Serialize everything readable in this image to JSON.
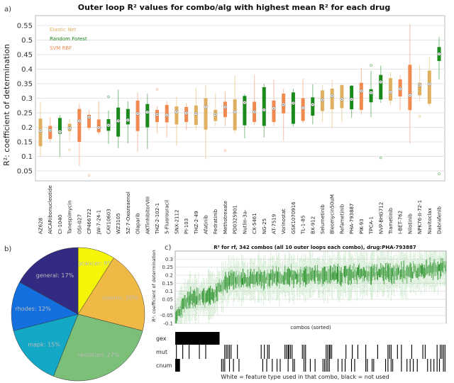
{
  "panel_labels": {
    "a": "a)",
    "b": "b)",
    "c": "c)"
  },
  "chart_data": [
    {
      "type": "box",
      "title": "Outer loop R² values for combo/alg with highest mean R² for each drug",
      "ylabel": "R²: coefficient of determination",
      "ylim": [
        0.03,
        0.57
      ],
      "yticks": [
        0.05,
        0.1,
        0.15,
        0.2,
        0.25,
        0.3,
        0.35,
        0.4,
        0.45,
        0.5,
        0.55
      ],
      "grid": true,
      "legend_placement": "top-left",
      "legend": [
        {
          "key": "EN",
          "label": "Elastic Net",
          "color": "#e0b060"
        },
        {
          "key": "RF",
          "label": "Random Forest",
          "color": "#1a8a1a"
        },
        {
          "key": "SVM",
          "label": "SVM RBF",
          "color": "#f08a50"
        }
      ],
      "boxes": [
        {
          "drug": "AZ628",
          "alg": "EN",
          "median": 0.188,
          "q1": 0.135,
          "q3": 0.23,
          "lo": 0.1,
          "hi": 0.288,
          "outliers": []
        },
        {
          "drug": "AICARibonucleotide",
          "alg": "SVM",
          "median": 0.19,
          "q1": 0.16,
          "q3": 0.205,
          "lo": 0.148,
          "hi": 0.235,
          "outliers": []
        },
        {
          "drug": "CI-1040",
          "alg": "RF",
          "median": 0.185,
          "q1": 0.178,
          "q3": 0.232,
          "lo": 0.098,
          "hi": 0.242,
          "outliers": []
        },
        {
          "drug": "Tanespimycin",
          "alg": "EN",
          "median": 0.197,
          "q1": 0.187,
          "q3": 0.212,
          "lo": 0.153,
          "hi": 0.228,
          "outliers": [
            0.123
          ]
        },
        {
          "drug": "OSI-027",
          "alg": "SVM",
          "median": 0.222,
          "q1": 0.15,
          "q3": 0.263,
          "lo": 0.067,
          "hi": 0.28,
          "outliers": []
        },
        {
          "drug": "CP466722",
          "alg": "SVM",
          "median": 0.235,
          "q1": 0.198,
          "q3": 0.243,
          "lo": 0.19,
          "hi": 0.26,
          "outliers": [
            0.035
          ]
        },
        {
          "drug": "JW-7-24-1",
          "alg": "SVM",
          "median": 0.199,
          "q1": 0.183,
          "q3": 0.227,
          "lo": 0.175,
          "hi": 0.29,
          "outliers": []
        },
        {
          "drug": "CAY10603",
          "alg": "RF",
          "median": 0.207,
          "q1": 0.188,
          "q3": 0.228,
          "lo": 0.143,
          "hi": 0.258,
          "outliers": [
            0.305
          ]
        },
        {
          "drug": "WZ3105",
          "alg": "RF",
          "median": 0.222,
          "q1": 0.168,
          "q3": 0.268,
          "lo": 0.128,
          "hi": 0.33,
          "outliers": []
        },
        {
          "drug": "5Z-7-Oxozeaenol",
          "alg": "RF",
          "median": 0.225,
          "q1": 0.21,
          "q3": 0.263,
          "lo": 0.145,
          "hi": 0.29,
          "outliers": []
        },
        {
          "drug": "Olaparib",
          "alg": "SVM",
          "median": 0.247,
          "q1": 0.187,
          "q3": 0.292,
          "lo": 0.115,
          "hi": 0.32,
          "outliers": []
        },
        {
          "drug": "AKTinhibitorVIII",
          "alg": "RF",
          "median": 0.252,
          "q1": 0.2,
          "q3": 0.28,
          "lo": 0.125,
          "hi": 0.315,
          "outliers": []
        },
        {
          "drug": "THZ-2-102-1",
          "alg": "SVM",
          "median": 0.244,
          "q1": 0.218,
          "q3": 0.26,
          "lo": 0.18,
          "hi": 0.273,
          "outliers": [
            0.33
          ]
        },
        {
          "drug": "5-Fluorouracil",
          "alg": "SVM",
          "median": 0.242,
          "q1": 0.217,
          "q3": 0.277,
          "lo": 0.165,
          "hi": 0.29,
          "outliers": []
        },
        {
          "drug": "SNX-2112",
          "alg": "EN",
          "median": 0.253,
          "q1": 0.21,
          "q3": 0.272,
          "lo": 0.137,
          "hi": 0.305,
          "outliers": []
        },
        {
          "drug": "PI-103",
          "alg": "SVM",
          "median": 0.249,
          "q1": 0.218,
          "q3": 0.27,
          "lo": 0.192,
          "hi": 0.283,
          "outliers": []
        },
        {
          "drug": "THZ-2-49",
          "alg": "EN",
          "median": 0.247,
          "q1": 0.208,
          "q3": 0.275,
          "lo": 0.19,
          "hi": 0.335,
          "outliers": []
        },
        {
          "drug": "Afatinib",
          "alg": "EN",
          "median": 0.27,
          "q1": 0.192,
          "q3": 0.3,
          "lo": 0.09,
          "hi": 0.345,
          "outliers": []
        },
        {
          "drug": "Fedratinib",
          "alg": "EN",
          "median": 0.244,
          "q1": 0.222,
          "q3": 0.26,
          "lo": 0.205,
          "hi": 0.318,
          "outliers": []
        },
        {
          "drug": "Methotrexate",
          "alg": "SVM",
          "median": 0.27,
          "q1": 0.235,
          "q3": 0.288,
          "lo": 0.205,
          "hi": 0.323,
          "outliers": [
            0.12
          ]
        },
        {
          "drug": "PD0325901",
          "alg": "EN",
          "median": 0.253,
          "q1": 0.19,
          "q3": 0.296,
          "lo": 0.178,
          "hi": 0.378,
          "outliers": []
        },
        {
          "drug": "Nutlin-3a-",
          "alg": "RF",
          "median": 0.285,
          "q1": 0.207,
          "q3": 0.308,
          "lo": 0.162,
          "hi": 0.315,
          "outliers": []
        },
        {
          "drug": "CX-5461",
          "alg": "SVM",
          "median": 0.253,
          "q1": 0.218,
          "q3": 0.288,
          "lo": 0.207,
          "hi": 0.38,
          "outliers": []
        },
        {
          "drug": "NG-25",
          "alg": "RF",
          "median": 0.26,
          "q1": 0.205,
          "q3": 0.338,
          "lo": 0.165,
          "hi": 0.35,
          "outliers": []
        },
        {
          "drug": "AT-7519",
          "alg": "SVM",
          "median": 0.265,
          "q1": 0.218,
          "q3": 0.292,
          "lo": 0.205,
          "hi": 0.363,
          "outliers": []
        },
        {
          "drug": "Vorinostat",
          "alg": "SVM",
          "median": 0.278,
          "q1": 0.248,
          "q3": 0.316,
          "lo": 0.153,
          "hi": 0.333,
          "outliers": []
        },
        {
          "drug": "GSK1070916",
          "alg": "RF",
          "median": 0.283,
          "q1": 0.212,
          "q3": 0.32,
          "lo": 0.203,
          "hi": 0.333,
          "outliers": []
        },
        {
          "drug": "TL-1-85",
          "alg": "SVM",
          "median": 0.267,
          "q1": 0.222,
          "q3": 0.3,
          "lo": 0.215,
          "hi": 0.367,
          "outliers": []
        },
        {
          "drug": "BX-912",
          "alg": "RF",
          "median": 0.278,
          "q1": 0.24,
          "q3": 0.303,
          "lo": 0.21,
          "hi": 0.348,
          "outliers": []
        },
        {
          "drug": "Selumetinib",
          "alg": "EN",
          "median": 0.294,
          "q1": 0.256,
          "q3": 0.327,
          "lo": 0.218,
          "hi": 0.346,
          "outliers": []
        },
        {
          "drug": "Bleomycin50uM",
          "alg": "EN",
          "median": 0.308,
          "q1": 0.262,
          "q3": 0.333,
          "lo": 0.196,
          "hi": 0.363,
          "outliers": []
        },
        {
          "drug": "Refametinib",
          "alg": "EN",
          "median": 0.296,
          "q1": 0.266,
          "q3": 0.345,
          "lo": 0.216,
          "hi": 0.35,
          "outliers": []
        },
        {
          "drug": "PHA-793887",
          "alg": "RF",
          "median": 0.296,
          "q1": 0.262,
          "q3": 0.343,
          "lo": 0.233,
          "hi": 0.345,
          "outliers": []
        },
        {
          "drug": "PIK-93",
          "alg": "SVM",
          "median": 0.325,
          "q1": 0.26,
          "q3": 0.353,
          "lo": 0.245,
          "hi": 0.405,
          "outliers": []
        },
        {
          "drug": "TPCA-1",
          "alg": "RF",
          "median": 0.319,
          "q1": 0.286,
          "q3": 0.331,
          "lo": 0.235,
          "hi": 0.395,
          "outliers": [
            0.413
          ]
        },
        {
          "drug": "NVP-BHG712",
          "alg": "RF",
          "median": 0.356,
          "q1": 0.296,
          "q3": 0.38,
          "lo": 0.284,
          "hi": 0.412,
          "outliers": [
            0.095
          ]
        },
        {
          "drug": "Trametinib",
          "alg": "EN",
          "median": 0.321,
          "q1": 0.292,
          "q3": 0.369,
          "lo": 0.276,
          "hi": 0.39,
          "outliers": []
        },
        {
          "drug": "I-BET-762",
          "alg": "SVM",
          "median": 0.332,
          "q1": 0.306,
          "q3": 0.365,
          "lo": 0.258,
          "hi": 0.38,
          "outliers": []
        },
        {
          "drug": "Nilotinib",
          "alg": "SVM",
          "median": 0.31,
          "q1": 0.259,
          "q3": 0.415,
          "lo": 0.145,
          "hi": 0.555,
          "outliers": []
        },
        {
          "drug": "NPK76-II-72-1",
          "alg": "EN",
          "median": 0.345,
          "q1": 0.31,
          "q3": 0.353,
          "lo": 0.29,
          "hi": 0.415,
          "outliers": [
            0.237
          ]
        },
        {
          "drug": "Navitoclax",
          "alg": "EN",
          "median": 0.349,
          "q1": 0.281,
          "q3": 0.395,
          "lo": 0.272,
          "hi": 0.443,
          "outliers": []
        },
        {
          "drug": "Dabrafenib",
          "alg": "RF",
          "median": 0.452,
          "q1": 0.428,
          "q3": 0.476,
          "lo": 0.364,
          "hi": 0.51,
          "outliers": [
            0.04
          ]
        }
      ]
    },
    {
      "type": "pie",
      "slices": [
        {
          "label": "sigcancer: 9%",
          "value": 9,
          "color": "#f5f50a"
        },
        {
          "label": "cosmic: 20%",
          "value": 20,
          "color": "#f0b845"
        },
        {
          "label": "radiation: 27%",
          "value": 27,
          "color": "#7cbf78"
        },
        {
          "label": "mapk: 15%",
          "value": 15,
          "color": "#12a8c6"
        },
        {
          "label": "rhodes: 12%",
          "value": 12,
          "color": "#1470de"
        },
        {
          "label": "general: 17%",
          "value": 17,
          "color": "#332a82"
        }
      ]
    },
    {
      "type": "box",
      "title": "R² for rf, 342 combos (all 10 outer loops each combo), drug:PHA-793887",
      "xlabel": "combos (sorted)",
      "ylabel": "R²: coefficient of determination",
      "n_combos": 342,
      "ylim": [
        -0.1,
        0.35
      ],
      "yticks": [
        -0.1,
        -0.05,
        0,
        0.05,
        0.1,
        0.15,
        0.2,
        0.25,
        0.3
      ],
      "color": "#1a8a1a",
      "median_trend": [
        [
          0,
          -0.07
        ],
        [
          5,
          -0.02
        ],
        [
          10,
          0.03
        ],
        [
          20,
          0.06
        ],
        [
          40,
          0.07
        ],
        [
          50,
          0.08
        ],
        [
          55,
          0.12
        ],
        [
          70,
          0.17
        ],
        [
          100,
          0.18
        ],
        [
          150,
          0.19
        ],
        [
          200,
          0.2
        ],
        [
          250,
          0.21
        ],
        [
          300,
          0.22
        ],
        [
          341,
          0.25
        ]
      ],
      "feature_rows": [
        {
          "name": "gex",
          "unused_combos_ranges": [
            [
              0,
              55
            ]
          ],
          "unused_combos": []
        },
        {
          "name": "mut",
          "unused_combos_ranges": [],
          "unused_combos": [
            1,
            9,
            17,
            30,
            38,
            62,
            64,
            66,
            68,
            70,
            78,
            108,
            112,
            116,
            118,
            138,
            140,
            142,
            143,
            145,
            147,
            160,
            162,
            164,
            190,
            192,
            194,
            195,
            197,
            215,
            223,
            230,
            240,
            255,
            268,
            270,
            272,
            280,
            285,
            298,
            312,
            315,
            330,
            334,
            336,
            338,
            340
          ]
        },
        {
          "name": "cnum",
          "unused_combos_ranges": [
            [
              0,
              5
            ]
          ],
          "unused_combos": [
            58,
            60,
            62,
            68,
            73,
            80,
            110,
            115,
            122,
            128,
            132,
            142,
            148,
            150,
            162,
            164,
            170,
            176,
            186,
            188,
            190,
            192,
            194,
            205,
            210,
            214,
            222,
            226,
            240,
            242,
            248,
            250,
            265,
            268,
            272,
            274,
            285,
            292,
            296,
            300,
            305,
            318,
            322,
            326,
            330,
            333,
            338,
            340
          ]
        }
      ],
      "caption": "White = feature type used in that combo, black = not used"
    }
  ]
}
